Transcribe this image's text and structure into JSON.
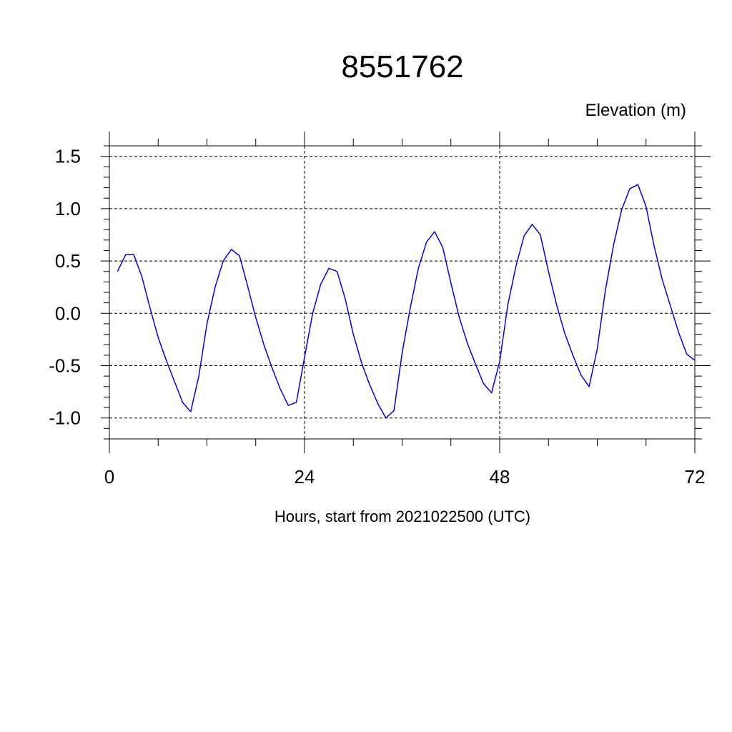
{
  "chart_data": {
    "type": "line",
    "title": "8551762",
    "units_label": "Elevation (m)",
    "xlabel": "Hours, start from 2021022500 (UTC)",
    "ylabel": "",
    "xlim": [
      0,
      72
    ],
    "ylim": [
      -1.2,
      1.6
    ],
    "x_ticks": [
      0,
      24,
      48,
      72
    ],
    "x_tick_labels": [
      "0",
      "24",
      "48",
      "72"
    ],
    "y_ticks": [
      -1.0,
      -0.5,
      0.0,
      0.5,
      1.0,
      1.5
    ],
    "y_tick_labels": [
      "-1.0",
      "-0.5",
      "0.0",
      "0.5",
      "1.0",
      "1.5"
    ],
    "grid": true,
    "series_color": "#0000ee",
    "series": [
      {
        "x": [
          1,
          2,
          3,
          4,
          5,
          6,
          7,
          8,
          9,
          10,
          11,
          12,
          13,
          14,
          15,
          16,
          17,
          18,
          19,
          20,
          21,
          22,
          23,
          24,
          25,
          26,
          27,
          28,
          29,
          30,
          31,
          32,
          33,
          34,
          35,
          36,
          37,
          38,
          39,
          40,
          41,
          42,
          43,
          44,
          45,
          46,
          47,
          48,
          49,
          50,
          51,
          52,
          53,
          54,
          55,
          56,
          57,
          58,
          59,
          60,
          61,
          62,
          63,
          64,
          65,
          66,
          67,
          68,
          69,
          70,
          71,
          72
        ],
        "values": [
          0.4,
          0.56,
          0.56,
          0.35,
          0.05,
          -0.23,
          -0.45,
          -0.65,
          -0.85,
          -0.94,
          -0.6,
          -0.1,
          0.25,
          0.5,
          0.61,
          0.55,
          0.26,
          -0.04,
          -0.3,
          -0.52,
          -0.72,
          -0.88,
          -0.85,
          -0.42,
          0.0,
          0.28,
          0.43,
          0.4,
          0.14,
          -0.2,
          -0.47,
          -0.68,
          -0.86,
          -1.0,
          -0.93,
          -0.38,
          0.05,
          0.43,
          0.68,
          0.78,
          0.63,
          0.29,
          -0.03,
          -0.28,
          -0.48,
          -0.67,
          -0.76,
          -0.46,
          0.08,
          0.45,
          0.74,
          0.85,
          0.75,
          0.4,
          0.08,
          -0.19,
          -0.4,
          -0.59,
          -0.7,
          -0.34,
          0.22,
          0.65,
          0.99,
          1.19,
          1.23,
          1.02,
          0.64,
          0.32,
          0.07,
          -0.18,
          -0.39,
          -0.45
        ]
      }
    ]
  }
}
